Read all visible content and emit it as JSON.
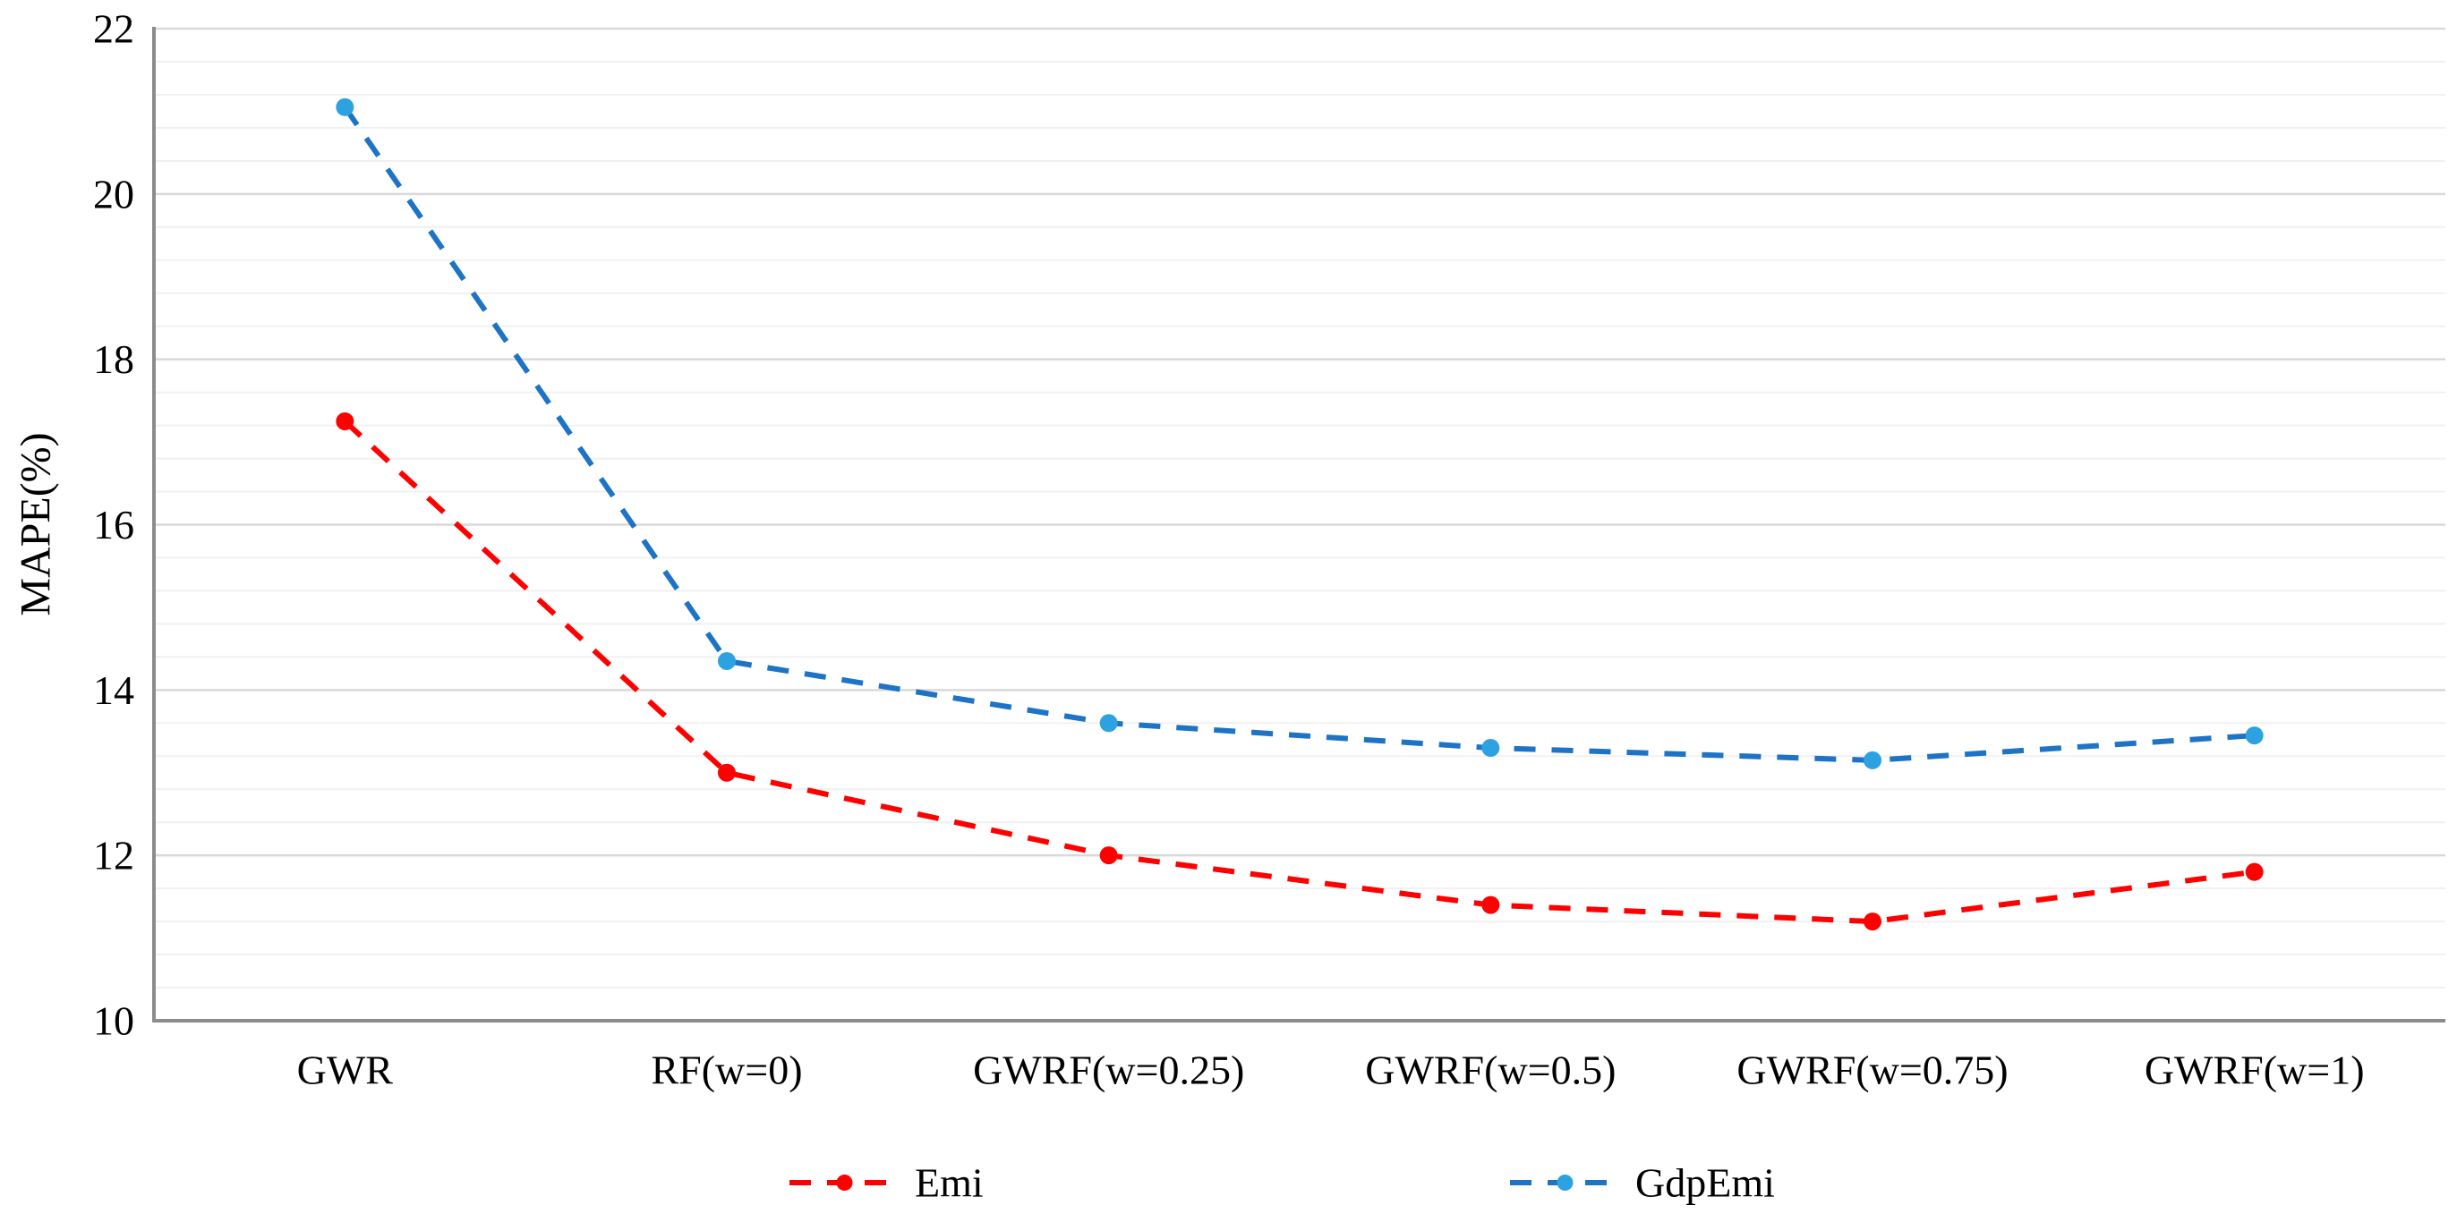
{
  "chart_data": {
    "type": "line",
    "title": "",
    "xlabel": "",
    "ylabel": "MAPE(%)",
    "categories": [
      "GWR",
      "RF(w=0)",
      "GWRF(w=0.25)",
      "GWRF(w=0.5)",
      "GWRF(w=0.75)",
      "GWRF(w=1)"
    ],
    "series": [
      {
        "name": "Emi",
        "values": [
          17.25,
          13.0,
          12.0,
          11.4,
          11.2,
          11.8
        ],
        "line_color": "#ff0000",
        "marker_color": "#ff0000",
        "line_style": "dashed",
        "marker": "circle"
      },
      {
        "name": "GdpEmi",
        "values": [
          21.05,
          14.35,
          13.6,
          13.3,
          13.15,
          13.45
        ],
        "line_color": "#1d73c6",
        "marker_color": "#2da2e0",
        "line_style": "dashed",
        "marker": "circle"
      }
    ],
    "ylim": [
      10,
      22
    ],
    "y_major_ticks": [
      22,
      20,
      18,
      16,
      14,
      12,
      10
    ],
    "y_minor_step": 0.4,
    "grid": "horizontal major and minor gridlines",
    "legend_position": "bottom",
    "colors": {
      "major_gridline": "#d9d9d9",
      "minor_gridline": "#f1f1f1",
      "axis_line": "#8c8c8c",
      "text": "#000000"
    }
  }
}
